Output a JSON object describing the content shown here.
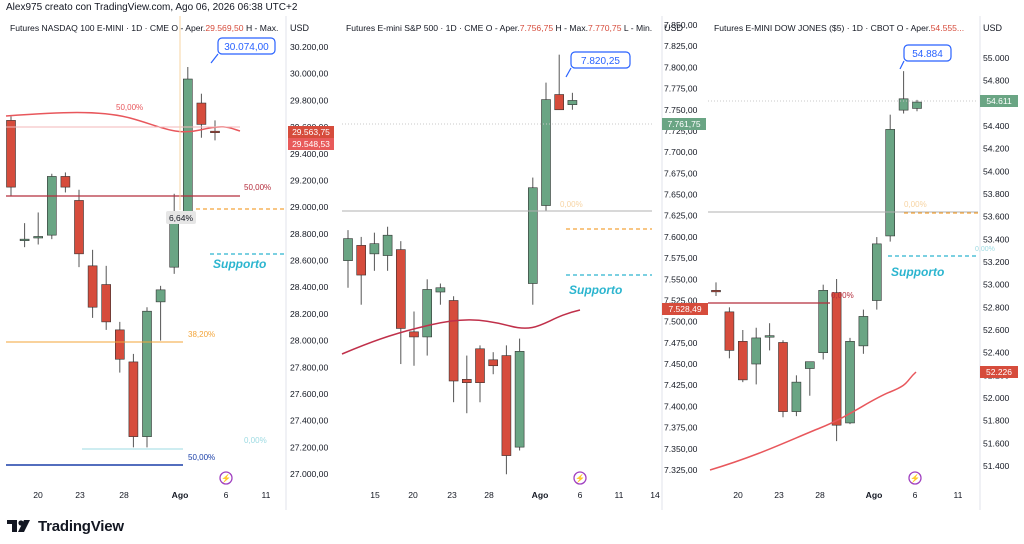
{
  "header": {
    "text": "Alex975 creato con TradingView.com, Ago 06, 2026 06:38 UTC+2"
  },
  "footer": {
    "brand": "TradingView"
  },
  "colors": {
    "up": "#6aa584",
    "down": "#d64c3c",
    "ma": "#e8575c",
    "support": "#2cb5cf",
    "fib_orange": "#f3a53a",
    "fib_blue": "#1a3fa8",
    "red_line": "#b42d3c",
    "callout": "#2962ff",
    "lightning": "#a040c0"
  },
  "chart_data": [
    {
      "type": "candlestick",
      "title": "Futures NASDAQ 100 E-MINI · 1D · CME",
      "ohlc_header": {
        "o_label": "O - Aper.",
        "o_value": "29.569,50",
        "h_label": "H - Max."
      },
      "axis_label": "USD",
      "y_ticks": [
        "30.200,00",
        "30.000,00",
        "29.800,00",
        "29.600,00",
        "29.400,00",
        "29.200,00",
        "29.000,00",
        "28.800,00",
        "28.600,00",
        "28.400,00",
        "28.200,00",
        "28.000,00",
        "27.800,00",
        "27.600,00",
        "27.400,00",
        "27.200,00",
        "27.000,00"
      ],
      "x_ticks": [
        "20",
        "23",
        "28",
        "Ago",
        "6",
        "11"
      ],
      "price_tags": [
        {
          "text": "29.563,75"
        },
        {
          "text": "29.548,53"
        }
      ],
      "callout": "30.074,00",
      "ma_label": "50,00%",
      "fib_labels": [
        "50,00%",
        "6,64%",
        "38,20%",
        "0,00%",
        "50,00%"
      ],
      "support_label": "Supporto",
      "candles": [
        {
          "o": 29650,
          "h": 29680,
          "l": 29080,
          "c": 29150
        },
        {
          "o": 28750,
          "h": 28880,
          "l": 28700,
          "c": 28760
        },
        {
          "o": 28770,
          "h": 28960,
          "l": 28720,
          "c": 28780
        },
        {
          "o": 28790,
          "h": 29250,
          "l": 28760,
          "c": 29230
        },
        {
          "o": 29230,
          "h": 29260,
          "l": 29110,
          "c": 29150
        },
        {
          "o": 29050,
          "h": 29130,
          "l": 28550,
          "c": 28650
        },
        {
          "o": 28560,
          "h": 28680,
          "l": 28170,
          "c": 28250
        },
        {
          "o": 28420,
          "h": 28560,
          "l": 28080,
          "c": 28140
        },
        {
          "o": 28080,
          "h": 28140,
          "l": 27760,
          "c": 27860
        },
        {
          "o": 27840,
          "h": 27900,
          "l": 27200,
          "c": 27280
        },
        {
          "o": 27280,
          "h": 28250,
          "l": 27200,
          "c": 28220
        },
        {
          "o": 28290,
          "h": 28410,
          "l": 28000,
          "c": 28380
        },
        {
          "o": 28550,
          "h": 29100,
          "l": 28500,
          "c": 28900
        },
        {
          "o": 28930,
          "h": 30050,
          "l": 28900,
          "c": 29960
        },
        {
          "o": 29780,
          "h": 29850,
          "l": 29520,
          "c": 29620
        },
        {
          "o": 29569,
          "h": 29650,
          "l": 29500,
          "c": 29563
        }
      ]
    },
    {
      "type": "candlestick",
      "title": "Futures E-mini S&P 500 · 1D · CME",
      "ohlc_header": {
        "o_label": "O - Aper.",
        "o_value": "7.756,75",
        "h_label": "H - Max.",
        "h_value": "7.770,75",
        "l_label": "L - Min."
      },
      "axis_label": "USD",
      "y_ticks": [
        "7.850,00",
        "7.825,00",
        "7.800,00",
        "7.775,00",
        "7.750,00",
        "7.725,00",
        "7.700,00",
        "7.675,00",
        "7.650,00",
        "7.625,00",
        "7.600,00",
        "7.575,00",
        "7.550,00",
        "7.525,00",
        "7.500,00",
        "7.475,00",
        "7.450,00",
        "7.425,00",
        "7.400,00",
        "7.375,00",
        "7.350,00",
        "7.325,00"
      ],
      "x_ticks": [
        "15",
        "20",
        "23",
        "28",
        "Ago",
        "6",
        "11",
        "14"
      ],
      "price_tags": [
        {
          "text": "7.761,75"
        }
      ],
      "callout": "7.820,25",
      "fib_labels": [
        "0,00%"
      ],
      "support_label": "Supporto",
      "candles": [
        {
          "o": 7572,
          "h": 7608,
          "l": 7540,
          "c": 7598
        },
        {
          "o": 7590,
          "h": 7600,
          "l": 7520,
          "c": 7555
        },
        {
          "o": 7580,
          "h": 7605,
          "l": 7560,
          "c": 7592
        },
        {
          "o": 7578,
          "h": 7612,
          "l": 7560,
          "c": 7602
        },
        {
          "o": 7585,
          "h": 7595,
          "l": 7450,
          "c": 7492
        },
        {
          "o": 7488,
          "h": 7512,
          "l": 7448,
          "c": 7482
        },
        {
          "o": 7482,
          "h": 7550,
          "l": 7460,
          "c": 7538
        },
        {
          "o": 7535,
          "h": 7545,
          "l": 7520,
          "c": 7540
        },
        {
          "o": 7525,
          "h": 7530,
          "l": 7405,
          "c": 7430
        },
        {
          "o": 7432,
          "h": 7460,
          "l": 7392,
          "c": 7428
        },
        {
          "o": 7468,
          "h": 7472,
          "l": 7405,
          "c": 7428
        },
        {
          "o": 7455,
          "h": 7464,
          "l": 7438,
          "c": 7448
        },
        {
          "o": 7460,
          "h": 7472,
          "l": 7320,
          "c": 7342
        },
        {
          "o": 7352,
          "h": 7480,
          "l": 7348,
          "c": 7465
        },
        {
          "o": 7545,
          "h": 7670,
          "l": 7520,
          "c": 7658
        },
        {
          "o": 7637,
          "h": 7782,
          "l": 7630,
          "c": 7762
        },
        {
          "o": 7768,
          "h": 7815,
          "l": 7752,
          "c": 7750
        },
        {
          "o": 7756,
          "h": 7770,
          "l": 7750,
          "c": 7761
        }
      ]
    },
    {
      "type": "candlestick",
      "title": "Futures E-MINI DOW JONES ($5) · 1D · CBOT",
      "ohlc_header": {
        "o_label": "O - Aper.",
        "o_value": "54.555..."
      },
      "axis_label": "USD",
      "y_ticks": [
        "55.000",
        "54.800",
        "54.600",
        "54.400",
        "54.200",
        "54.000",
        "53.800",
        "53.600",
        "53.400",
        "53.200",
        "53.000",
        "52.800",
        "52.600",
        "52.400",
        "52.200",
        "52.000",
        "51.800",
        "51.600",
        "51.400"
      ],
      "x_ticks": [
        "20",
        "23",
        "28",
        "Ago",
        "6",
        "11"
      ],
      "price_tags": [
        {
          "text": "54.611"
        },
        {
          "text": "52.226"
        }
      ],
      "callout": "54.884",
      "fib_labels": [
        "0,00%",
        "0,00%"
      ],
      "support_label": "Supporto",
      "candles": [
        {
          "o": 52950,
          "h": 53020,
          "l": 52900,
          "c": 52940
        },
        {
          "o": 52760,
          "h": 52800,
          "l": 52350,
          "c": 52420
        },
        {
          "o": 52500,
          "h": 52600,
          "l": 52140,
          "c": 52160
        },
        {
          "o": 52300,
          "h": 52620,
          "l": 52120,
          "c": 52530
        },
        {
          "o": 52540,
          "h": 52660,
          "l": 52420,
          "c": 52550
        },
        {
          "o": 52490,
          "h": 52510,
          "l": 51830,
          "c": 51880
        },
        {
          "o": 51880,
          "h": 52200,
          "l": 51840,
          "c": 52140
        },
        {
          "o": 52260,
          "h": 52300,
          "l": 52020,
          "c": 52320
        },
        {
          "o": 52400,
          "h": 53000,
          "l": 52340,
          "c": 52950
        },
        {
          "o": 52930,
          "h": 53050,
          "l": 51620,
          "c": 51760
        },
        {
          "o": 51780,
          "h": 52530,
          "l": 51770,
          "c": 52500
        },
        {
          "o": 52460,
          "h": 52780,
          "l": 52390,
          "c": 52720
        },
        {
          "o": 52860,
          "h": 53420,
          "l": 52780,
          "c": 53360
        },
        {
          "o": 53430,
          "h": 54500,
          "l": 53380,
          "c": 54370
        },
        {
          "o": 54540,
          "h": 54884,
          "l": 54510,
          "c": 54640
        },
        {
          "o": 54555,
          "h": 54630,
          "l": 54530,
          "c": 54611
        }
      ]
    }
  ]
}
